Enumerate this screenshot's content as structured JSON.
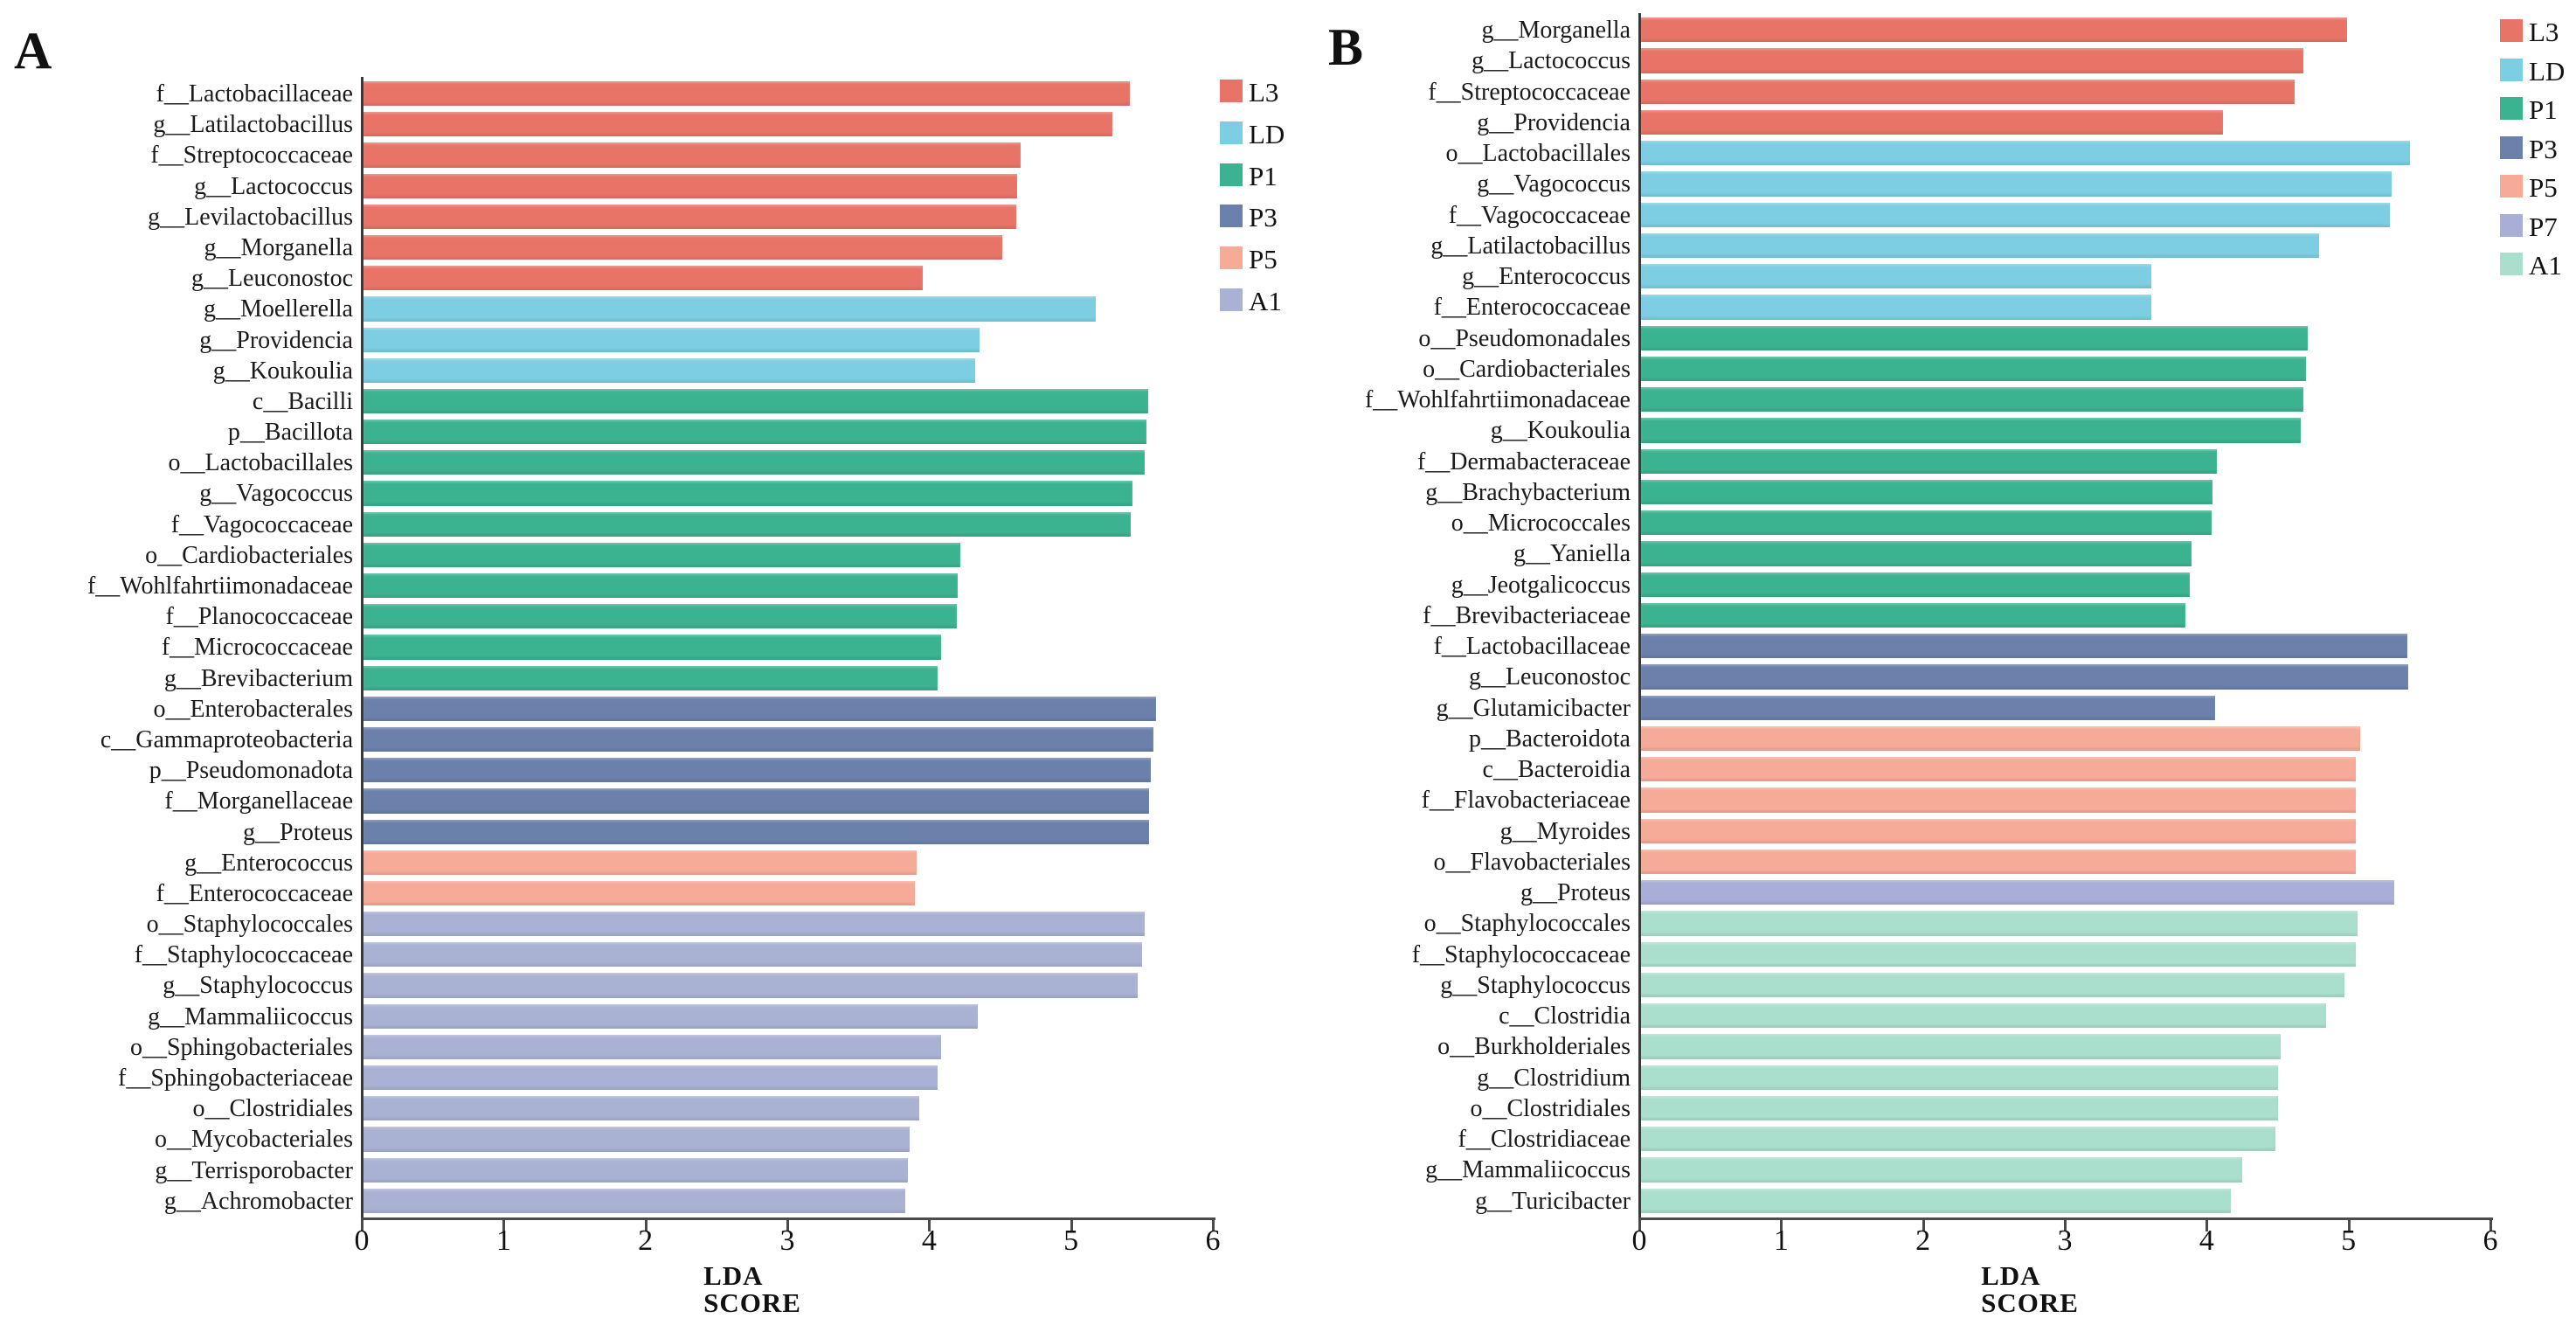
{
  "figure": {
    "xlabel": "LDA SCORE",
    "x_ticks": [
      "0",
      "1",
      "2",
      "3",
      "4",
      "5",
      "6"
    ]
  },
  "chart_data": [
    {
      "type": "bar",
      "orientation": "horizontal",
      "panel_label": "A",
      "xlabel": "LDA SCORE",
      "xlim": [
        0,
        6
      ],
      "x_ticks": [
        0,
        1,
        2,
        3,
        4,
        5,
        6
      ],
      "grid": false,
      "legend_position": "top-right",
      "legend": [
        {
          "label": "L3",
          "color": "#e87468"
        },
        {
          "label": "LD",
          "color": "#7dcee2"
        },
        {
          "label": "P1",
          "color": "#3cb390"
        },
        {
          "label": "P3",
          "color": "#6b80ab"
        },
        {
          "label": "P5",
          "color": "#f6ab98"
        },
        {
          "label": "A1",
          "color": "#aab2d4"
        }
      ],
      "items": [
        {
          "label": "f__Lactobacillaceae",
          "group": "L3",
          "value": 5.4
        },
        {
          "label": "g__Latilactobacillus",
          "group": "L3",
          "value": 5.28
        },
        {
          "label": "f__Streptococcaceae",
          "group": "L3",
          "value": 4.63
        },
        {
          "label": "g__Lactococcus",
          "group": "L3",
          "value": 4.61
        },
        {
          "label": "g__Levilactobacillus",
          "group": "L3",
          "value": 4.6
        },
        {
          "label": "g__Morganella",
          "group": "L3",
          "value": 4.5
        },
        {
          "label": "g__Leuconostoc",
          "group": "L3",
          "value": 3.94
        },
        {
          "label": "g__Moellerella",
          "group": "LD",
          "value": 5.16
        },
        {
          "label": "g__Providencia",
          "group": "LD",
          "value": 4.34
        },
        {
          "label": "g__Koukoulia",
          "group": "LD",
          "value": 4.31
        },
        {
          "label": "c__Bacilli",
          "group": "P1",
          "value": 5.53
        },
        {
          "label": "p__Bacillota",
          "group": "P1",
          "value": 5.52
        },
        {
          "label": "o__Lactobacillales",
          "group": "P1",
          "value": 5.51
        },
        {
          "label": "g__Vagococcus",
          "group": "P1",
          "value": 5.42
        },
        {
          "label": "f__Vagococcaceae",
          "group": "P1",
          "value": 5.41
        },
        {
          "label": "o__Cardiobacteriales",
          "group": "P1",
          "value": 4.21
        },
        {
          "label": "f__Wohlfahrtiimonadaceae",
          "group": "P1",
          "value": 4.19
        },
        {
          "label": "f__Planococcaceae",
          "group": "P1",
          "value": 4.18
        },
        {
          "label": "f__Micrococcaceae",
          "group": "P1",
          "value": 4.07
        },
        {
          "label": "g__Brevibacterium",
          "group": "P1",
          "value": 4.05
        },
        {
          "label": "o__Enterobacterales",
          "group": "P3",
          "value": 5.59
        },
        {
          "label": "c__Gammaproteobacteria",
          "group": "P3",
          "value": 5.57
        },
        {
          "label": "p__Pseudomonadota",
          "group": "P3",
          "value": 5.55
        },
        {
          "label": "f__Morganellaceae",
          "group": "P3",
          "value": 5.54
        },
        {
          "label": "g__Proteus",
          "group": "P3",
          "value": 5.54
        },
        {
          "label": "g__Enterococcus",
          "group": "P5",
          "value": 3.9
        },
        {
          "label": "f__Enterococcaceae",
          "group": "P5",
          "value": 3.89
        },
        {
          "label": "o__Staphylococcales",
          "group": "A1",
          "value": 5.51
        },
        {
          "label": "f__Staphylococcaceae",
          "group": "A1",
          "value": 5.49
        },
        {
          "label": "g__Staphylococcus",
          "group": "A1",
          "value": 5.46
        },
        {
          "label": "g__Mammaliicoccus",
          "group": "A1",
          "value": 4.33
        },
        {
          "label": "o__Sphingobacteriales",
          "group": "A1",
          "value": 4.07
        },
        {
          "label": "f__Sphingobacteriaceae",
          "group": "A1",
          "value": 4.05
        },
        {
          "label": "o__Clostridiales",
          "group": "A1",
          "value": 3.92
        },
        {
          "label": "o__Mycobacteriales",
          "group": "A1",
          "value": 3.85
        },
        {
          "label": "g__Terrisporobacter",
          "group": "A1",
          "value": 3.84
        },
        {
          "label": "g__Achromobacter",
          "group": "A1",
          "value": 3.82
        }
      ]
    },
    {
      "type": "bar",
      "orientation": "horizontal",
      "panel_label": "B",
      "xlabel": "LDA SCORE",
      "xlim": [
        0,
        6
      ],
      "x_ticks": [
        0,
        1,
        2,
        3,
        4,
        5,
        6
      ],
      "grid": false,
      "legend_position": "top-right",
      "legend": [
        {
          "label": "L3",
          "color": "#e87468"
        },
        {
          "label": "LD",
          "color": "#7dcee2"
        },
        {
          "label": "P1",
          "color": "#3cb390"
        },
        {
          "label": "P3",
          "color": "#6b80ab"
        },
        {
          "label": "P5",
          "color": "#f6ab98"
        },
        {
          "label": "P7",
          "color": "#a9aed6"
        },
        {
          "label": "A1",
          "color": "#abdfcd"
        }
      ],
      "items": [
        {
          "label": "g__Morganella",
          "group": "L3",
          "value": 4.98
        },
        {
          "label": "g__Lactococcus",
          "group": "L3",
          "value": 4.67
        },
        {
          "label": "f__Streptococcaceae",
          "group": "L3",
          "value": 4.61
        },
        {
          "label": "g__Providencia",
          "group": "L3",
          "value": 4.1
        },
        {
          "label": "o__Lactobacillales",
          "group": "LD",
          "value": 5.42
        },
        {
          "label": "g__Vagococcus",
          "group": "LD",
          "value": 5.29
        },
        {
          "label": "f__Vagococcaceae",
          "group": "LD",
          "value": 5.28
        },
        {
          "label": "g__Latilactobacillus",
          "group": "LD",
          "value": 4.78
        },
        {
          "label": "g__Enterococcus",
          "group": "LD",
          "value": 3.6
        },
        {
          "label": "f__Enterococcaceae",
          "group": "LD",
          "value": 3.6
        },
        {
          "label": "o__Pseudomonadales",
          "group": "P1",
          "value": 4.7
        },
        {
          "label": "o__Cardiobacteriales",
          "group": "P1",
          "value": 4.69
        },
        {
          "label": "f__Wohlfahrtiimonadaceae",
          "group": "P1",
          "value": 4.67
        },
        {
          "label": "g__Koukoulia",
          "group": "P1",
          "value": 4.65
        },
        {
          "label": "f__Dermabacteraceae",
          "group": "P1",
          "value": 4.06
        },
        {
          "label": "g__Brachybacterium",
          "group": "P1",
          "value": 4.03
        },
        {
          "label": "o__Micrococcales",
          "group": "P1",
          "value": 4.02
        },
        {
          "label": "g__Yaniella",
          "group": "P1",
          "value": 3.88
        },
        {
          "label": "g__Jeotgalicoccus",
          "group": "P1",
          "value": 3.87
        },
        {
          "label": "f__Brevibacteriaceae",
          "group": "P1",
          "value": 3.84
        },
        {
          "label": "f__Lactobacillaceae",
          "group": "P3",
          "value": 5.4
        },
        {
          "label": "g__Leuconostoc",
          "group": "P3",
          "value": 5.41
        },
        {
          "label": "g__Glutamicibacter",
          "group": "P3",
          "value": 4.05
        },
        {
          "label": "p__Bacteroidota",
          "group": "P5",
          "value": 5.07
        },
        {
          "label": "c__Bacteroidia",
          "group": "P5",
          "value": 5.04
        },
        {
          "label": "f__Flavobacteriaceae",
          "group": "P5",
          "value": 5.04
        },
        {
          "label": "g__Myroides",
          "group": "P5",
          "value": 5.04
        },
        {
          "label": "o__Flavobacteriales",
          "group": "P5",
          "value": 5.04
        },
        {
          "label": "g__Proteus",
          "group": "P7",
          "value": 5.31
        },
        {
          "label": "o__Staphylococcales",
          "group": "A1",
          "value": 5.05
        },
        {
          "label": "f__Staphylococcaceae",
          "group": "A1",
          "value": 5.04
        },
        {
          "label": "g__Staphylococcus",
          "group": "A1",
          "value": 4.96
        },
        {
          "label": "c__Clostridia",
          "group": "A1",
          "value": 4.83
        },
        {
          "label": "o__Burkholderiales",
          "group": "A1",
          "value": 4.51
        },
        {
          "label": "g__Clostridium",
          "group": "A1",
          "value": 4.49
        },
        {
          "label": "o__Clostridiales",
          "group": "A1",
          "value": 4.49
        },
        {
          "label": "f__Clostridiaceae",
          "group": "A1",
          "value": 4.47
        },
        {
          "label": "g__Mammaliicoccus",
          "group": "A1",
          "value": 4.24
        },
        {
          "label": "g__Turicibacter",
          "group": "A1",
          "value": 4.16
        }
      ]
    }
  ]
}
